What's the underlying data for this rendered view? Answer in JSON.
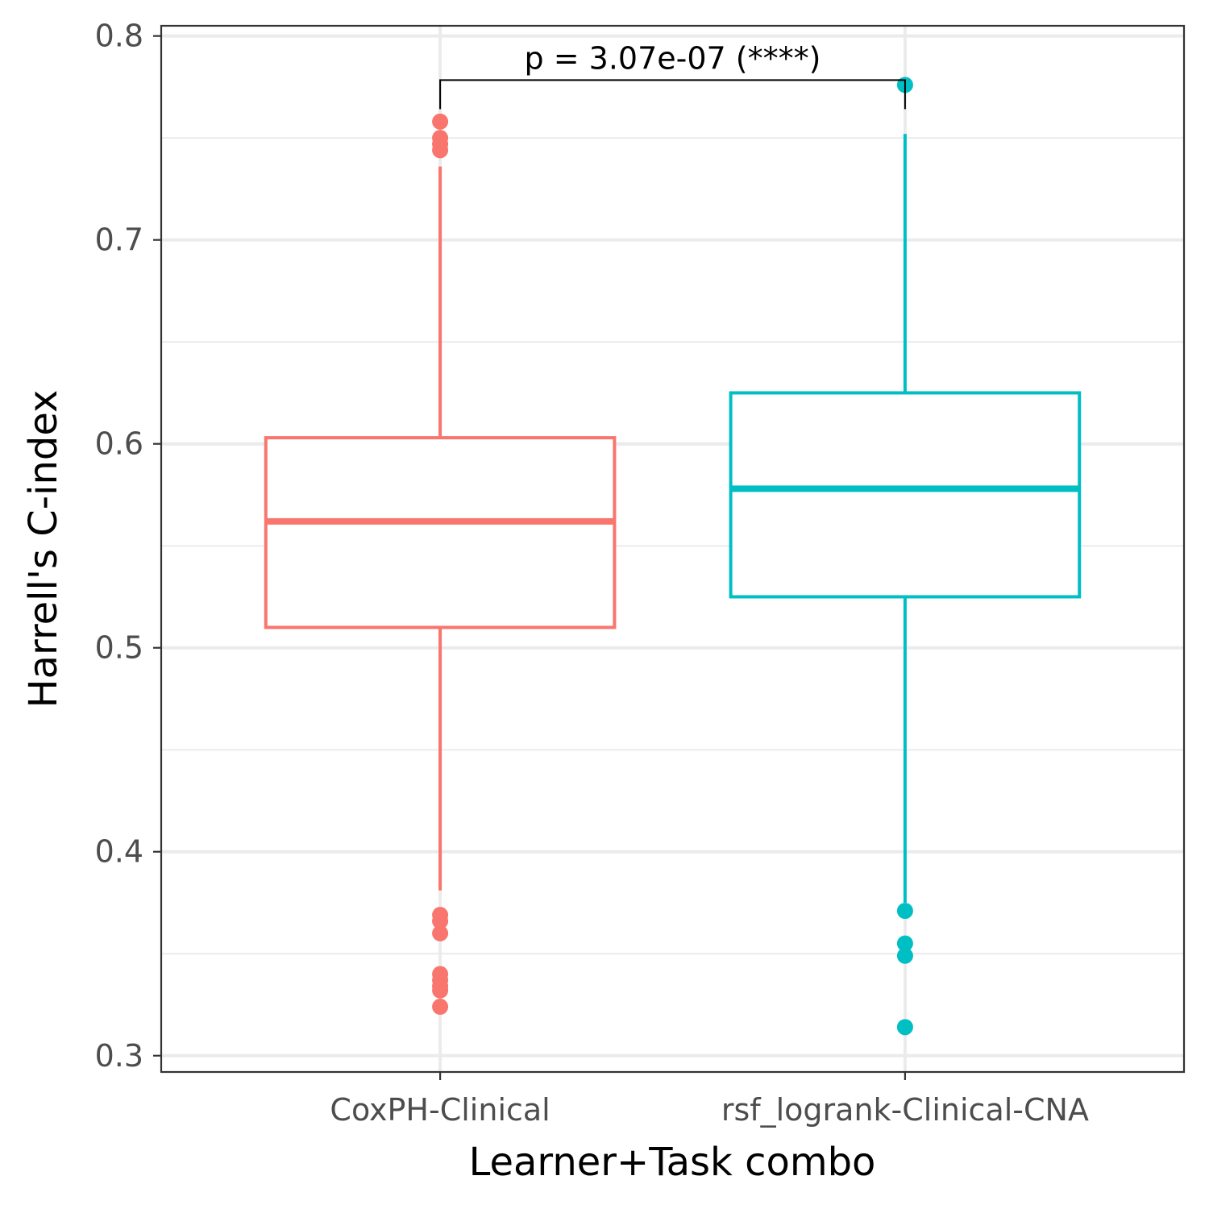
{
  "chart_data": {
    "type": "box",
    "title": "",
    "xlabel": "Learner+Task combo",
    "ylabel": "Harrell's C-index",
    "ylim": [
      0.292,
      0.805
    ],
    "y_ticks": [
      "0.3",
      "0.4",
      "0.5",
      "0.6",
      "0.7",
      "0.8"
    ],
    "grid": true,
    "legend": "none",
    "categories": [
      "CoxPH-Clinical",
      "rsf_logrank-Clinical-CNA"
    ],
    "series": [
      {
        "category": "CoxPH-Clinical",
        "color": "#F8766D",
        "lower_whisker": 0.381,
        "q1": 0.51,
        "median": 0.562,
        "q3": 0.603,
        "upper_whisker": 0.736,
        "outliers": [
          0.758,
          0.75,
          0.747,
          0.744,
          0.369,
          0.366,
          0.36,
          0.34,
          0.337,
          0.334,
          0.332,
          0.324
        ]
      },
      {
        "category": "rsf_logrank-Clinical-CNA",
        "color": "#00BFC4",
        "lower_whisker": 0.375,
        "q1": 0.525,
        "median": 0.578,
        "q3": 0.625,
        "upper_whisker": 0.752,
        "outliers": [
          0.776,
          0.371,
          0.355,
          0.349,
          0.314
        ]
      }
    ],
    "annotation": {
      "text": "p = 3.07e-07 (****)",
      "bracket_y": 0.776,
      "from": "CoxPH-Clinical",
      "to": "rsf_logrank-Clinical-CNA"
    }
  }
}
